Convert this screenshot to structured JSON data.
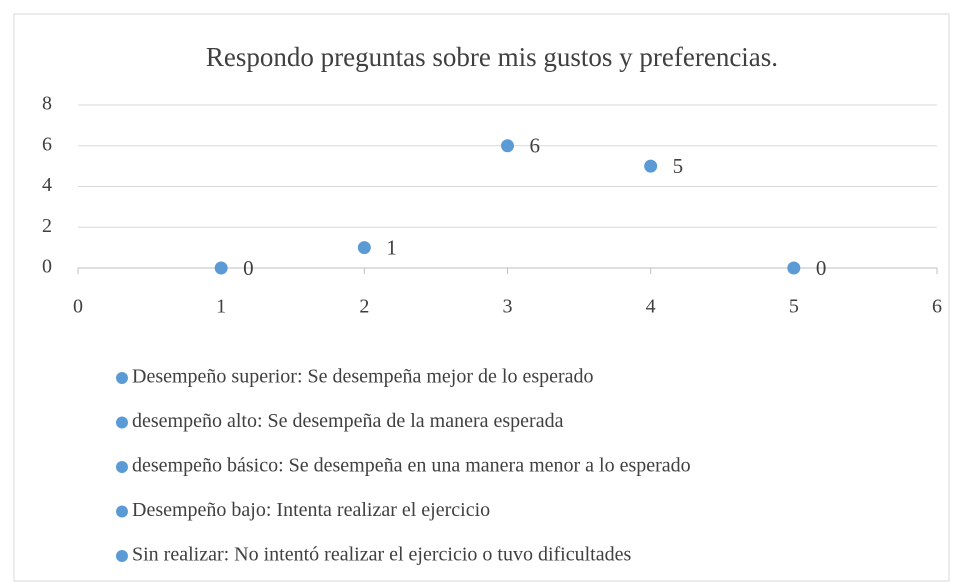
{
  "chart_data": {
    "type": "scatter",
    "title": "Respondo preguntas sobre mis gustos y preferencias.",
    "series": [
      {
        "name": "Desempeño superior: Se desempeña mejor de lo esperado",
        "color": "#5b9bd5",
        "x": [
          1
        ],
        "values": [
          0
        ]
      },
      {
        "name": "desempeño alto: Se desempeña de la manera esperada",
        "color": "#5b9bd5",
        "x": [
          2
        ],
        "values": [
          1
        ]
      },
      {
        "name": "desempeño básico: Se desempeña en una manera menor a lo esperado",
        "color": "#5b9bd5",
        "x": [
          3
        ],
        "values": [
          6
        ]
      },
      {
        "name": "Desempeño bajo: Intenta realizar el ejercicio",
        "color": "#5b9bd5",
        "x": [
          4
        ],
        "values": [
          5
        ]
      },
      {
        "name": "Sin realizar: No intentó realizar el ejercicio o tuvo dificultades",
        "color": "#5b9bd5",
        "x": [
          5
        ],
        "values": [
          0
        ]
      }
    ],
    "xlim": [
      0,
      6
    ],
    "xticks": [
      0,
      1,
      2,
      3,
      4,
      5,
      6
    ],
    "ylim": [
      0,
      8
    ],
    "yticks": [
      0,
      2,
      4,
      6,
      8
    ],
    "grid": true,
    "legend": "bottom"
  }
}
